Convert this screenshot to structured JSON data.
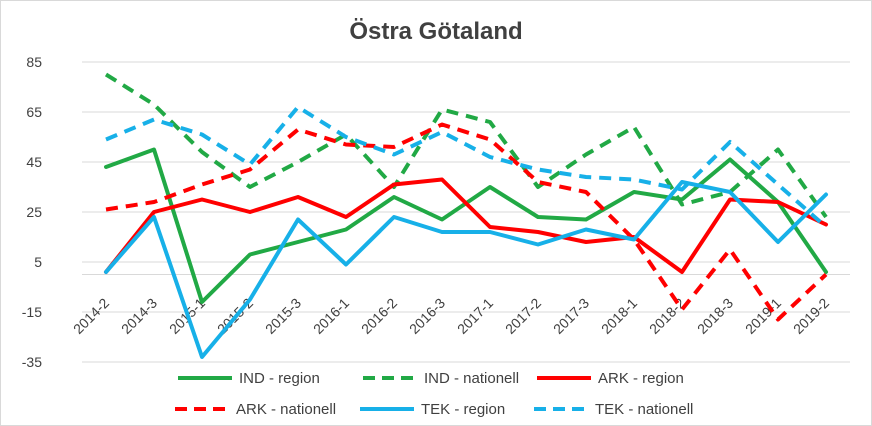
{
  "chart_data": {
    "type": "line",
    "title": "Östra Götaland",
    "xlabel": "",
    "ylabel": "",
    "ylim": [
      -35,
      85
    ],
    "yticks": [
      85,
      65,
      45,
      25,
      5,
      -15,
      -35
    ],
    "grid": true,
    "legend_position": "bottom",
    "categories": [
      "2014-2",
      "2014-3",
      "2015-1",
      "2015-2",
      "2015-3",
      "2016-1",
      "2016-2",
      "2016-3",
      "2017-1",
      "2017-2",
      "2017-3",
      "2018-1",
      "2018-2",
      "2018-3",
      "2019-1",
      "2019-2"
    ],
    "series": [
      {
        "name": "IND - region",
        "color": "#21a945",
        "dash": "solid",
        "values": [
          43,
          50,
          -11,
          8,
          13,
          18,
          31,
          22,
          35,
          23,
          22,
          33,
          30,
          46,
          29,
          1
        ]
      },
      {
        "name": "IND - nationell",
        "color": "#21a945",
        "dash": "dashed",
        "values": [
          80,
          68,
          49,
          35,
          45,
          56,
          35,
          66,
          61,
          35,
          48,
          59,
          28,
          33,
          50,
          23
        ]
      },
      {
        "name": "ARK - region",
        "color": "#ff0000",
        "dash": "solid",
        "values": [
          1,
          25,
          30,
          25,
          31,
          23,
          36,
          38,
          19,
          17,
          13,
          15,
          1,
          30,
          29,
          20
        ]
      },
      {
        "name": "ARK - nationell",
        "color": "#ff0000",
        "dash": "dashed",
        "values": [
          26,
          29,
          36,
          42,
          58,
          52,
          51,
          60,
          54,
          37,
          33,
          14,
          -14,
          10,
          -18,
          0
        ]
      },
      {
        "name": "TEK - region",
        "color": "#17b0e8",
        "dash": "solid",
        "values": [
          1,
          23,
          -33,
          -10,
          22,
          4,
          23,
          17,
          17,
          12,
          18,
          14,
          37,
          33,
          13,
          32
        ]
      },
      {
        "name": "TEK - nationell",
        "color": "#17b0e8",
        "dash": "dashed",
        "values": [
          54,
          62,
          56,
          44,
          67,
          55,
          48,
          57,
          47,
          42,
          39,
          38,
          34,
          53,
          36,
          19
        ]
      }
    ]
  }
}
